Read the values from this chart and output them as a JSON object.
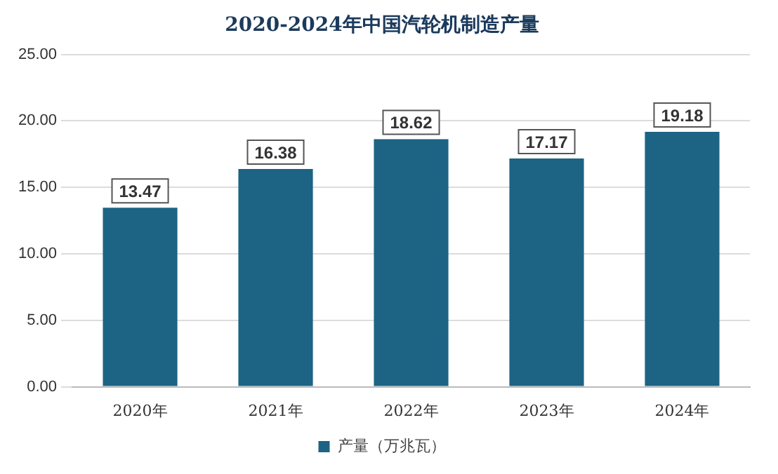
{
  "chart_data": {
    "type": "bar",
    "title": "2020-2024年中国汽轮机制造产量",
    "categories": [
      "2020年",
      "2021年",
      "2022年",
      "2023年",
      "2024年"
    ],
    "series": [
      {
        "name": "产量（万兆瓦）",
        "color": "#1d6384",
        "values": [
          13.47,
          16.38,
          18.62,
          17.17,
          19.18
        ]
      }
    ],
    "ylim": [
      0,
      25
    ],
    "yticks": [
      {
        "value": 0,
        "label": "0.00"
      },
      {
        "value": 5,
        "label": "5.00"
      },
      {
        "value": 10,
        "label": "10.00"
      },
      {
        "value": 15,
        "label": "15.00"
      },
      {
        "value": 20,
        "label": "20.00"
      },
      {
        "value": 25,
        "label": "25.00"
      }
    ],
    "grid": "y",
    "legend": "bottom",
    "data_labels": true
  }
}
